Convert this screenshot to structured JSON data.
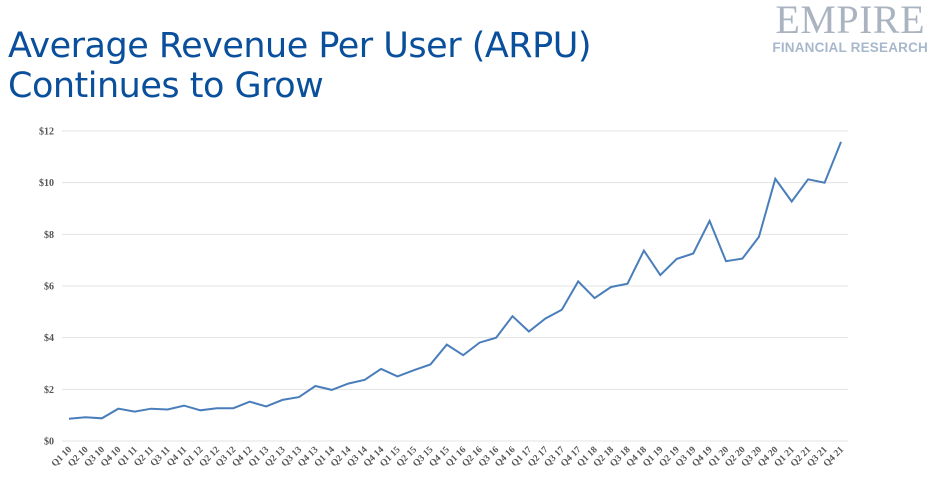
{
  "header": {
    "title_line1": "Average Revenue Per User (ARPU)",
    "title_line2": "Continues to Grow"
  },
  "logo": {
    "main": "EMPIRE",
    "sub": "FINANCIAL RESEARCH"
  },
  "chart_data": {
    "type": "line",
    "title": "Average Revenue Per User (ARPU) Continues to Grow",
    "xlabel": "",
    "ylabel": "",
    "ylim": [
      0,
      12
    ],
    "yticks": [
      0,
      2,
      4,
      6,
      8,
      10,
      12
    ],
    "ytick_labels": [
      "$0",
      "$2",
      "$4",
      "$6",
      "$8",
      "$10",
      "$12"
    ],
    "grid": true,
    "legend": "none",
    "line_color": "#4a7ebb",
    "categories": [
      "Q1 10",
      "Q2 10",
      "Q3 10",
      "Q4 10",
      "Q1 11",
      "Q2 11",
      "Q3 11",
      "Q4 11",
      "Q1 12",
      "Q2 12",
      "Q3 12",
      "Q4 12",
      "Q1 13",
      "Q2 13",
      "Q3 13",
      "Q4 13",
      "Q1 14",
      "Q2 14",
      "Q3 14",
      "Q4 14",
      "Q1 15",
      "Q2 15",
      "Q3 15",
      "Q4 15",
      "Q1 16",
      "Q2 16",
      "Q3 16",
      "Q4 16",
      "Q1 17",
      "Q2 17",
      "Q3 17",
      "Q4 17",
      "Q1 18",
      "Q2 18",
      "Q3 18",
      "Q4 18",
      "Q1 19",
      "Q2 19",
      "Q3 19",
      "Q4 19",
      "Q1 20",
      "Q2 20",
      "Q3 20",
      "Q4 20",
      "Q1 21",
      "Q2 21",
      "Q3 21",
      "Q4 21"
    ],
    "series": [
      {
        "name": "ARPU",
        "values": [
          0.86,
          0.92,
          0.88,
          1.25,
          1.14,
          1.25,
          1.22,
          1.37,
          1.19,
          1.27,
          1.27,
          1.52,
          1.34,
          1.59,
          1.7,
          2.13,
          1.98,
          2.22,
          2.37,
          2.79,
          2.5,
          2.74,
          2.96,
          3.73,
          3.32,
          3.81,
          4.0,
          4.83,
          4.24,
          4.74,
          5.08,
          6.18,
          5.53,
          5.96,
          6.09,
          7.37,
          6.42,
          7.05,
          7.26,
          8.52,
          6.96,
          7.06,
          7.9,
          10.15,
          9.27,
          10.13,
          10.0,
          11.58
        ]
      }
    ]
  }
}
